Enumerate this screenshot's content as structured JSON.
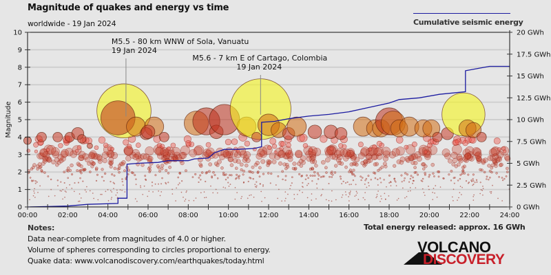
{
  "header": {
    "title": "Magnitude of quakes and energy vs time",
    "subtitle": "worldwide - 19 Jan 2024",
    "legend_label": "Cumulative seismic energy"
  },
  "footer": {
    "notes_heading": "Notes:",
    "notes": [
      "Data near-complete from magnitudes of 4.0 or higher.",
      "Volume of spheres corresponding to circles proportional to energy.",
      "Quake data: www.volcanodiscovery.com/earthquakes/today.html"
    ],
    "total_energy": "Total energy released: approx. 16 GWh"
  },
  "logo": {
    "line1": "VOLCANO",
    "line2": "DISCOVERY",
    "line2_color": "#c8202a"
  },
  "colors": {
    "energy_line": "#1a1aa0",
    "background": "#e6e6e6",
    "big_quake": "#f5f51e",
    "grid": "#cfcfcf"
  },
  "chart_data": {
    "type": "scatter",
    "title": "Magnitude of quakes and energy vs time",
    "subtitle": "worldwide - 19 Jan 2024",
    "xlabel": "",
    "ylabel": "Magnitude",
    "y2label": "Cumulative seismic energy",
    "xlim": [
      0,
      24
    ],
    "ylim": [
      0,
      10
    ],
    "y2lim": [
      0,
      20
    ],
    "grid": true,
    "legend_position": "top-right",
    "x_ticks": [
      "00:00",
      "02:00",
      "04:00",
      "06:00",
      "08:00",
      "10:00",
      "12:00",
      "14:00",
      "16:00",
      "18:00",
      "20:00",
      "22:00",
      "24:00"
    ],
    "y_ticks": [
      "0",
      "1",
      "2",
      "3",
      "4",
      "5",
      "6",
      "7",
      "8",
      "9",
      "10"
    ],
    "y2_ticks": [
      "0 GWh",
      "2.5 GWh",
      "5 GWh",
      "7.5 GWh",
      "10 GWh",
      "12.5 GWh",
      "15 GWh",
      "17.5 GWh",
      "20 GWh"
    ],
    "annotations": [
      {
        "line1": "M5.5 - 80 km WNW of Sola, Vanuatu",
        "line2": "19 Jan 2024",
        "x": 4.9,
        "mag": 5.5
      },
      {
        "line1": "M5.6 - 7 km E of Cartago, Colombia",
        "line2": "19 Jan 2024",
        "x": 11.6,
        "mag": 5.6
      }
    ],
    "series": [
      {
        "name": "Cumulative seismic energy",
        "unit": "GWh",
        "type": "step",
        "points": [
          [
            0,
            0
          ],
          [
            1,
            0.05
          ],
          [
            2,
            0.1
          ],
          [
            3,
            0.3
          ],
          [
            4.5,
            0.4
          ],
          [
            4.5,
            1.0
          ],
          [
            4.95,
            1.0
          ],
          [
            4.95,
            4.9
          ],
          [
            5.5,
            5.0
          ],
          [
            6.5,
            5.1
          ],
          [
            7,
            5.3
          ],
          [
            8,
            5.3
          ],
          [
            8.3,
            5.5
          ],
          [
            9,
            5.6
          ],
          [
            9.3,
            6.2
          ],
          [
            9.8,
            6.6
          ],
          [
            10.5,
            6.6
          ],
          [
            11.3,
            6.7
          ],
          [
            11.65,
            6.9
          ],
          [
            11.65,
            9.7
          ],
          [
            12.3,
            9.8
          ],
          [
            13,
            10.1
          ],
          [
            14,
            10.4
          ],
          [
            15,
            10.6
          ],
          [
            16,
            10.9
          ],
          [
            17,
            11.4
          ],
          [
            18,
            11.9
          ],
          [
            18.5,
            12.3
          ],
          [
            19.5,
            12.5
          ],
          [
            20.5,
            12.9
          ],
          [
            21.8,
            13.2
          ],
          [
            21.8,
            15.6
          ],
          [
            22.5,
            15.9
          ],
          [
            23,
            16.1
          ],
          [
            24,
            16.1
          ]
        ]
      },
      {
        "name": "Quakes M>=4.5 (large spheres)",
        "points": [
          [
            0.0,
            3.8
          ],
          [
            0.7,
            4.0
          ],
          [
            1.5,
            4.0
          ],
          [
            2.1,
            4.0
          ],
          [
            2.5,
            4.2
          ],
          [
            2.7,
            3.9
          ],
          [
            3.1,
            3.5
          ],
          [
            4.8,
            5.5
          ],
          [
            4.5,
            5.1
          ],
          [
            5.4,
            4.6
          ],
          [
            6.3,
            4.6
          ],
          [
            5.9,
            4.2
          ],
          [
            6.0,
            4.3
          ],
          [
            6.8,
            4.0
          ],
          [
            8.4,
            4.8
          ],
          [
            8.9,
            4.9
          ],
          [
            9.4,
            4.3
          ],
          [
            9.8,
            5.0
          ],
          [
            10.9,
            4.6
          ],
          [
            11.6,
            5.6
          ],
          [
            11.4,
            4.0
          ],
          [
            12.0,
            4.7
          ],
          [
            12.5,
            4.4
          ],
          [
            13.0,
            4.2
          ],
          [
            13.4,
            4.6
          ],
          [
            14.3,
            4.3
          ],
          [
            15.1,
            4.3
          ],
          [
            15.6,
            4.2
          ],
          [
            16.7,
            4.6
          ],
          [
            17.3,
            4.5
          ],
          [
            17.6,
            4.5
          ],
          [
            18.0,
            4.9
          ],
          [
            18.2,
            4.8
          ],
          [
            18.5,
            4.5
          ],
          [
            19.0,
            4.6
          ],
          [
            19.7,
            4.5
          ],
          [
            20.1,
            4.5
          ],
          [
            20.4,
            4.0
          ],
          [
            20.9,
            4.2
          ],
          [
            21.7,
            5.3
          ],
          [
            21.9,
            4.5
          ],
          [
            22.2,
            4.4
          ],
          [
            22.6,
            4.0
          ]
        ]
      },
      {
        "name": "Quakes M<4.5 (small spheres)",
        "description": "Several hundred events between M0.3 and M4.0 distributed across the full day"
      }
    ]
  }
}
